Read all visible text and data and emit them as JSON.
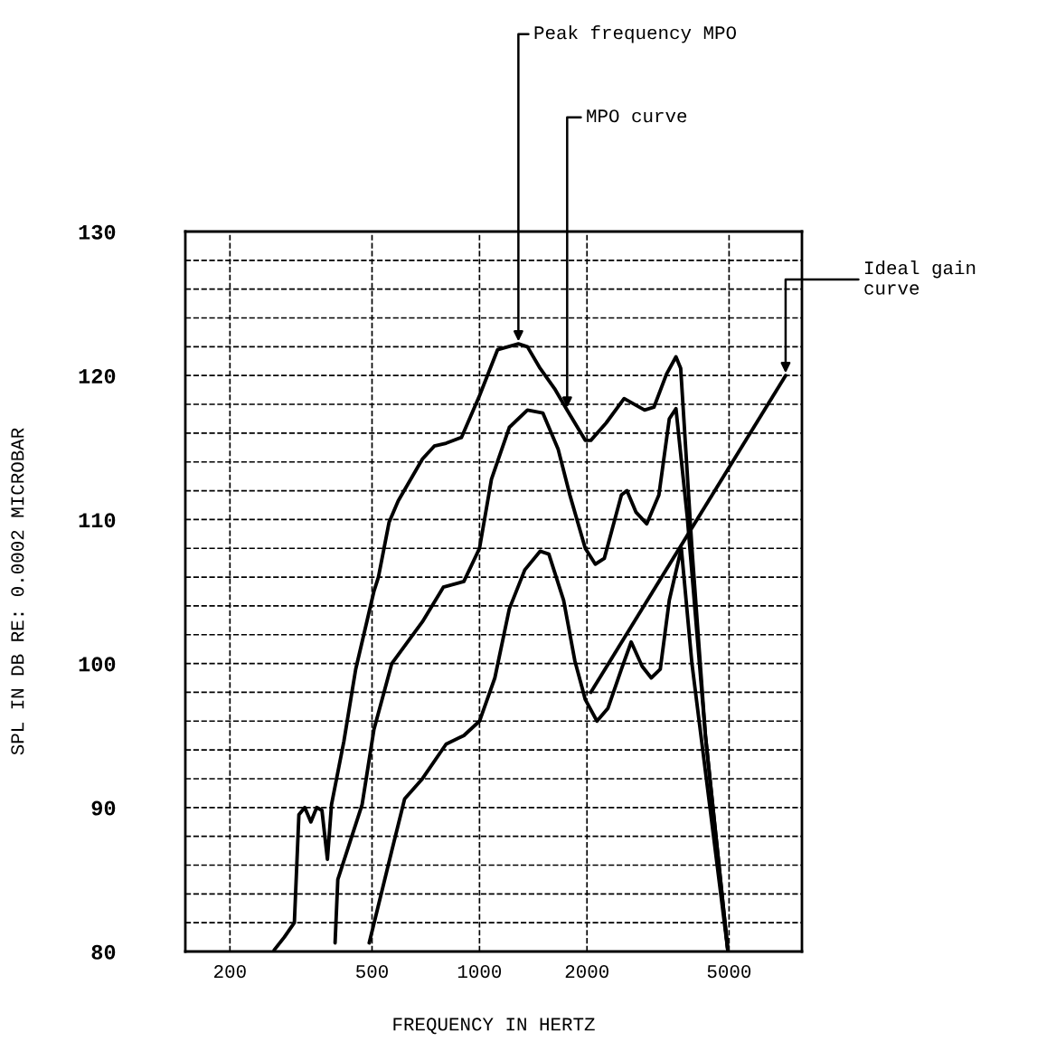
{
  "chart_data": {
    "type": "line",
    "xlabel": "FREQUENCY IN HERTZ",
    "ylabel": "SPL IN DB RE: 0.0002 MICROBAR",
    "log": "x",
    "xlim": [
      150,
      8000
    ],
    "xticks": [
      200,
      500,
      1000,
      2000,
      5000
    ],
    "ylim": [
      80,
      130
    ],
    "yticks": [
      80,
      {
        "value": 82,
        "label": null
      },
      {
        "value": 84,
        "label": null
      },
      {
        "value": 86,
        "label": null
      },
      {
        "value": 88,
        "label": null
      },
      90,
      {
        "value": 92,
        "label": null
      },
      {
        "value": 94,
        "label": null
      },
      {
        "value": 96,
        "label": null
      },
      {
        "value": 98,
        "label": null
      },
      100,
      {
        "value": 102,
        "label": null
      },
      {
        "value": 104,
        "label": null
      },
      {
        "value": 106,
        "label": null
      },
      {
        "value": 108,
        "label": null
      },
      110,
      {
        "value": 112,
        "label": null
      },
      {
        "value": 114,
        "label": null
      },
      {
        "value": 116,
        "label": null
      },
      {
        "value": 118,
        "label": null
      },
      120,
      {
        "value": 122,
        "label": null
      },
      {
        "value": 124,
        "label": null
      },
      {
        "value": 126,
        "label": null
      },
      {
        "value": 128,
        "label": null
      },
      130
    ],
    "grid": true,
    "series": [
      {
        "color": "#000000",
        "x": [
          266,
          284,
          303,
          312,
          324,
          337,
          350,
          362,
          375,
          385,
          417,
          450,
          506,
          521,
          558,
          592,
          692,
          747,
          806,
          890,
          1000,
          1124,
          1285,
          1362,
          1478,
          1622,
          1760,
          1978,
          2050,
          2262,
          2541,
          2900,
          3080,
          3340,
          3550,
          3660,
          3935,
          4293,
          4965
        ],
        "values": [
          80.1,
          81,
          82,
          89.5,
          90,
          89,
          90,
          89.8,
          86.4,
          90.2,
          94.6,
          99.6,
          105,
          106,
          109.8,
          111.3,
          114.2,
          115.1,
          115.3,
          115.7,
          118.6,
          121.8,
          122.2,
          122,
          120.5,
          119.1,
          117.6,
          115.5,
          115.5,
          116.7,
          118.4,
          117.6,
          117.8,
          120.1,
          121.3,
          120.5,
          108,
          95,
          80
        ]
      },
      {
        "color": "#000000",
        "x": [
          394,
          401,
          469,
          506,
          568,
          692,
          792,
          904,
          1000,
          1080,
          1212,
          1362,
          1504,
          1660,
          1791,
          1978,
          2110,
          2236,
          2497,
          2588,
          2745,
          2940,
          3180,
          3401,
          3550,
          3821,
          4293,
          4965
        ],
        "values": [
          80.6,
          85,
          90.2,
          95.4,
          100,
          102.9,
          105.3,
          105.7,
          108,
          112.8,
          116.4,
          117.6,
          117.4,
          114.9,
          111.7,
          108,
          106.9,
          107.3,
          111.7,
          112,
          110.5,
          109.7,
          111.7,
          117,
          117.7,
          110.1,
          95,
          80
        ]
      },
      {
        "color": "#000000",
        "x": [
          491,
          568,
          617,
          692,
          806,
          904,
          1000,
          1104,
          1212,
          1339,
          1478,
          1564,
          1720,
          1849,
          1978,
          2133,
          2290,
          2497,
          2660,
          2855,
          3027,
          3208,
          3401,
          3675,
          3935,
          4420,
          4965
        ],
        "values": [
          80.6,
          87,
          90.6,
          92,
          94.4,
          95,
          96,
          99,
          103.8,
          106.5,
          107.8,
          107.6,
          104.4,
          100.2,
          97.5,
          96,
          96.9,
          99.6,
          101.5,
          99.8,
          99,
          99.6,
          104.4,
          108,
          100,
          90,
          80
        ]
      },
      {
        "color": "#000000",
        "x": [
          2050,
          7200
        ],
        "values": [
          98,
          120
        ]
      }
    ],
    "annotations": [
      {
        "text": "Peak frequency MPO",
        "x": 1285,
        "y": 122.2
      },
      {
        "text": "MPO curve",
        "x": 1760,
        "y": 117.6
      },
      {
        "text": "Ideal gain\ncurve",
        "x": 7200,
        "y": 120
      }
    ]
  }
}
